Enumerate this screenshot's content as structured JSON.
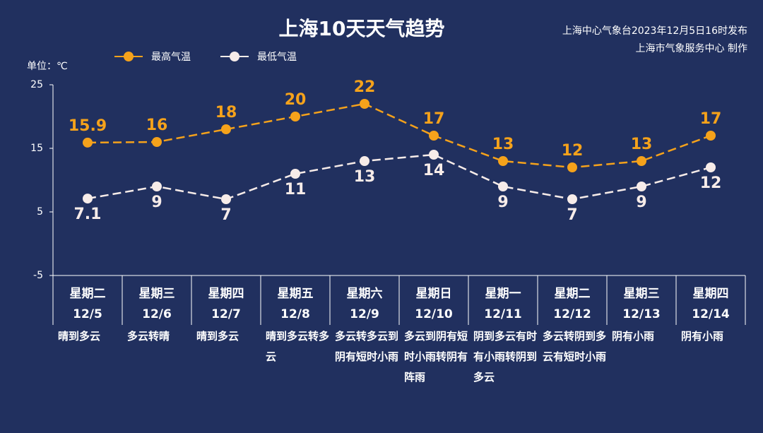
{
  "chart_data": {
    "type": "line",
    "title": "上海10天天气趋势",
    "notes": [
      "上海中心气象台2023年12月5日16时发布",
      "上海市气象服务中心 制作"
    ],
    "y_label": "单位：℃",
    "categories": [
      "12/5",
      "12/6",
      "12/7",
      "12/8",
      "12/9",
      "12/10",
      "12/11",
      "12/12",
      "12/13",
      "12/14"
    ],
    "weekdays": [
      "星期二",
      "星期三",
      "星期四",
      "星期五",
      "星期六",
      "星期日",
      "星期一",
      "星期二",
      "星期三",
      "星期四"
    ],
    "weather": [
      "晴到多云",
      "多云转晴",
      "晴到多云",
      "晴到多云转多云",
      "多云转多云到阴有短时小雨",
      "多云到阴有短时小雨转阴有阵雨",
      "阴到多云有时有小雨转阴到多云",
      "多云转阴到多云有短时小雨",
      "阴有小雨",
      "阴有小雨"
    ],
    "series": [
      {
        "name": "最高气温",
        "color": "#f5a21b",
        "values": [
          15.9,
          16,
          18,
          20,
          22,
          17,
          13,
          12,
          13,
          17
        ]
      },
      {
        "name": "最低气温",
        "color": "#f7ece9",
        "values": [
          7.1,
          9,
          7,
          11,
          13,
          14,
          9,
          7,
          9,
          12
        ]
      }
    ],
    "ylim": [
      -5,
      25
    ],
    "yticks": [
      -5,
      5,
      15,
      25
    ]
  }
}
